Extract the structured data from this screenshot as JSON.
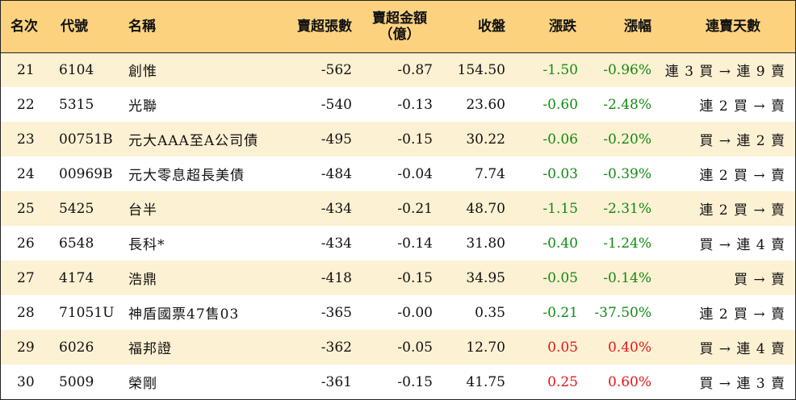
{
  "headers": {
    "rank": "名次",
    "code": "代號",
    "name": "名稱",
    "sell_lots": "賣超張數",
    "sell_amount_line1": "賣超金額",
    "sell_amount_line2": "（億）",
    "close": "收盤",
    "change": "漲跌",
    "change_pct": "漲幅",
    "streak": "連賣天數"
  },
  "colors": {
    "header_bg": "#fcd27f",
    "row_alt_bg": "#fdf1d3",
    "down": "#138a13",
    "up": "#e5141a"
  },
  "rows": [
    {
      "rank": "21",
      "code": "6104",
      "name": "創惟",
      "sell_lots": "-562",
      "sell_amount": "-0.87",
      "close": "154.50",
      "change": "-1.50",
      "change_pct": "-0.96%",
      "dir": "neg",
      "streak": "連 3 買 → 連 9 賣"
    },
    {
      "rank": "22",
      "code": "5315",
      "name": "光聯",
      "sell_lots": "-540",
      "sell_amount": "-0.13",
      "close": "23.60",
      "change": "-0.60",
      "change_pct": "-2.48%",
      "dir": "neg",
      "streak": "連 2 買 → 賣"
    },
    {
      "rank": "23",
      "code": "00751B",
      "name": "元大AAA至A公司債",
      "sell_lots": "-495",
      "sell_amount": "-0.15",
      "close": "30.22",
      "change": "-0.06",
      "change_pct": "-0.20%",
      "dir": "neg",
      "streak": "買 → 連 2 賣"
    },
    {
      "rank": "24",
      "code": "00969B",
      "name": "元大零息超長美債",
      "sell_lots": "-484",
      "sell_amount": "-0.04",
      "close": "7.74",
      "change": "-0.03",
      "change_pct": "-0.39%",
      "dir": "neg",
      "streak": "連 2 買 → 賣"
    },
    {
      "rank": "25",
      "code": "5425",
      "name": "台半",
      "sell_lots": "-434",
      "sell_amount": "-0.21",
      "close": "48.70",
      "change": "-1.15",
      "change_pct": "-2.31%",
      "dir": "neg",
      "streak": "連 2 買 → 賣"
    },
    {
      "rank": "26",
      "code": "6548",
      "name": "長科*",
      "sell_lots": "-434",
      "sell_amount": "-0.14",
      "close": "31.80",
      "change": "-0.40",
      "change_pct": "-1.24%",
      "dir": "neg",
      "streak": "買 → 連 4 賣"
    },
    {
      "rank": "27",
      "code": "4174",
      "name": "浩鼎",
      "sell_lots": "-418",
      "sell_amount": "-0.15",
      "close": "34.95",
      "change": "-0.05",
      "change_pct": "-0.14%",
      "dir": "neg",
      "streak": "買 → 賣"
    },
    {
      "rank": "28",
      "code": "71051U",
      "name": "神盾國票47售03",
      "sell_lots": "-365",
      "sell_amount": "-0.00",
      "close": "0.35",
      "change": "-0.21",
      "change_pct": "-37.50%",
      "dir": "neg",
      "streak": "連 2 買 → 賣"
    },
    {
      "rank": "29",
      "code": "6026",
      "name": "福邦證",
      "sell_lots": "-362",
      "sell_amount": "-0.05",
      "close": "12.70",
      "change": "0.05",
      "change_pct": "0.40%",
      "dir": "pos",
      "streak": "買 → 連 4 賣"
    },
    {
      "rank": "30",
      "code": "5009",
      "name": "榮剛",
      "sell_lots": "-361",
      "sell_amount": "-0.15",
      "close": "41.75",
      "change": "0.25",
      "change_pct": "0.60%",
      "dir": "pos",
      "streak": "買 → 連 3 賣"
    }
  ]
}
